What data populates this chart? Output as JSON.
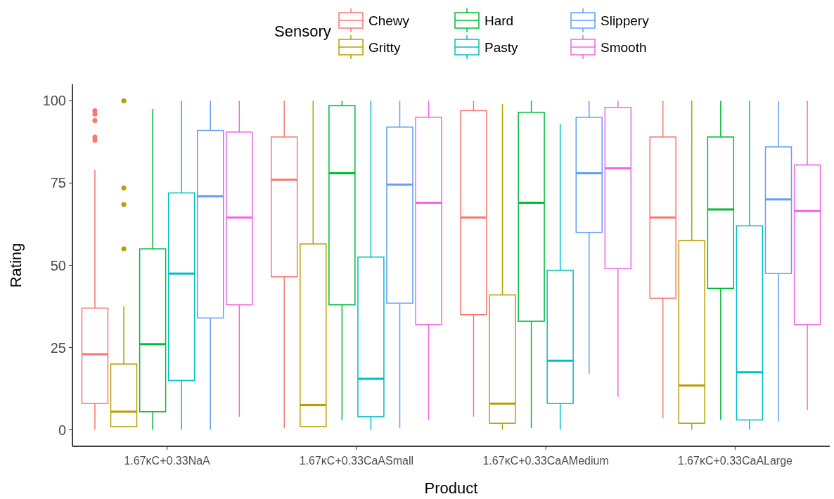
{
  "chart_data": {
    "type": "box",
    "xlabel": "Product",
    "ylabel": "Rating",
    "legend_title": "Sensory",
    "legend": "top",
    "grid": false,
    "categories": [
      "1.67κC+0.33NaA",
      "1.67κC+0.33CaASmall",
      "1.67κC+0.33CaAMedium",
      "1.67κC+0.33CaALarge"
    ],
    "ylim": [
      -5,
      105
    ],
    "yticks": [
      0,
      25,
      50,
      75,
      100
    ],
    "series": [
      {
        "name": "Chewy",
        "color": "#f8766d",
        "boxes": [
          {
            "low": 0,
            "q1": 8,
            "median": 23,
            "q3": 37,
            "high": 79,
            "outliers": [
              88,
              89,
              94,
              96,
              97
            ]
          },
          {
            "low": 0.5,
            "q1": 46.5,
            "median": 76,
            "q3": 89,
            "high": 100
          },
          {
            "low": 4,
            "q1": 35,
            "median": 64.5,
            "q3": 97,
            "high": 100
          },
          {
            "low": 3.5,
            "q1": 40,
            "median": 64.5,
            "q3": 89,
            "high": 100
          }
        ]
      },
      {
        "name": "Gritty",
        "color": "#b79f00",
        "boxes": [
          {
            "low": 1,
            "q1": 1,
            "median": 5.5,
            "q3": 20,
            "high": 37.5,
            "outliers": [
              55,
              68.5,
              73.5,
              100
            ]
          },
          {
            "low": 1,
            "q1": 1,
            "median": 7.5,
            "q3": 56.5,
            "high": 100
          },
          {
            "low": 0,
            "q1": 2,
            "median": 8,
            "q3": 41,
            "high": 99
          },
          {
            "low": 0,
            "q1": 2,
            "median": 13.5,
            "q3": 57.5,
            "high": 100
          }
        ]
      },
      {
        "name": "Hard",
        "color": "#00ba38",
        "boxes": [
          {
            "low": 0,
            "q1": 5.5,
            "median": 26,
            "q3": 55,
            "high": 97.5
          },
          {
            "low": 3,
            "q1": 38,
            "median": 78,
            "q3": 98.5,
            "high": 100
          },
          {
            "low": 0.5,
            "q1": 33,
            "median": 69,
            "q3": 96.5,
            "high": 100
          },
          {
            "low": 3,
            "q1": 43,
            "median": 67,
            "q3": 89,
            "high": 100
          }
        ]
      },
      {
        "name": "Pasty",
        "color": "#00bfc4",
        "boxes": [
          {
            "low": 0,
            "q1": 15,
            "median": 47.5,
            "q3": 72,
            "high": 100
          },
          {
            "low": 0,
            "q1": 4,
            "median": 15.5,
            "q3": 52.5,
            "high": 100
          },
          {
            "low": 0,
            "q1": 8,
            "median": 21,
            "q3": 48.5,
            "high": 93
          },
          {
            "low": 0,
            "q1": 3,
            "median": 17.5,
            "q3": 62,
            "high": 100
          }
        ]
      },
      {
        "name": "Slippery",
        "color": "#619cff",
        "boxes": [
          {
            "low": 0,
            "q1": 34,
            "median": 71,
            "q3": 91,
            "high": 100
          },
          {
            "low": 0.5,
            "q1": 38.5,
            "median": 74.5,
            "q3": 92,
            "high": 100
          },
          {
            "low": 17,
            "q1": 60,
            "median": 78,
            "q3": 95,
            "high": 100
          },
          {
            "low": 2.5,
            "q1": 47.5,
            "median": 70,
            "q3": 86,
            "high": 100
          }
        ]
      },
      {
        "name": "Smooth",
        "color": "#f564e3",
        "boxes": [
          {
            "low": 4,
            "q1": 38,
            "median": 64.5,
            "q3": 90.5,
            "high": 100
          },
          {
            "low": 3,
            "q1": 32,
            "median": 69,
            "q3": 95,
            "high": 100
          },
          {
            "low": 10,
            "q1": 49,
            "median": 79.5,
            "q3": 98,
            "high": 100
          },
          {
            "low": 6,
            "q1": 32,
            "median": 66.5,
            "q3": 80.5,
            "high": 100
          }
        ]
      }
    ]
  }
}
